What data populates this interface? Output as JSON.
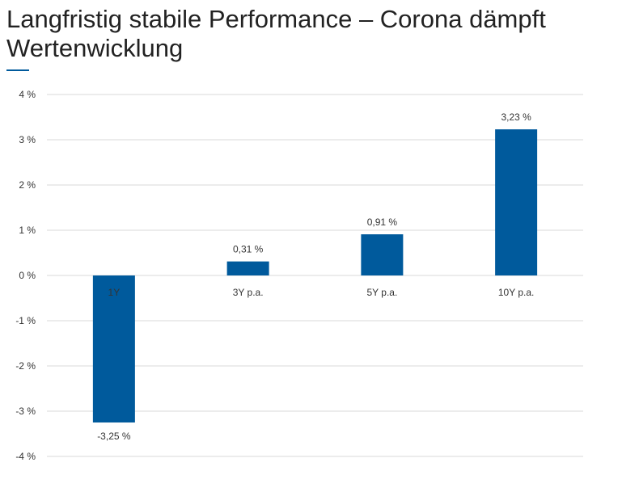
{
  "title": "Langfristig stabile Performance – Corona dämpft Wertenwicklung",
  "colors": {
    "bar": "#005a9c",
    "grid": "#d9d9d9",
    "accent": "#005a9c"
  },
  "chart_data": {
    "type": "bar",
    "categories": [
      "1Y",
      "3Y p.a.",
      "5Y p.a.",
      "10Y p.a."
    ],
    "values": [
      -3.25,
      0.31,
      0.91,
      3.23
    ],
    "data_labels": [
      "-3,25 %",
      "0,31 %",
      "0,91 %",
      "3,23 %"
    ],
    "yticks": [
      4,
      3,
      2,
      1,
      0,
      -1,
      -2,
      -3,
      -4
    ],
    "ytick_labels": [
      "4 %",
      "3 %",
      "2 %",
      "1 %",
      "0 %",
      "-1 %",
      "-2 %",
      "-3 %",
      "-4 %"
    ],
    "ylim": [
      -4,
      4
    ],
    "grid": true,
    "legend": "none"
  }
}
